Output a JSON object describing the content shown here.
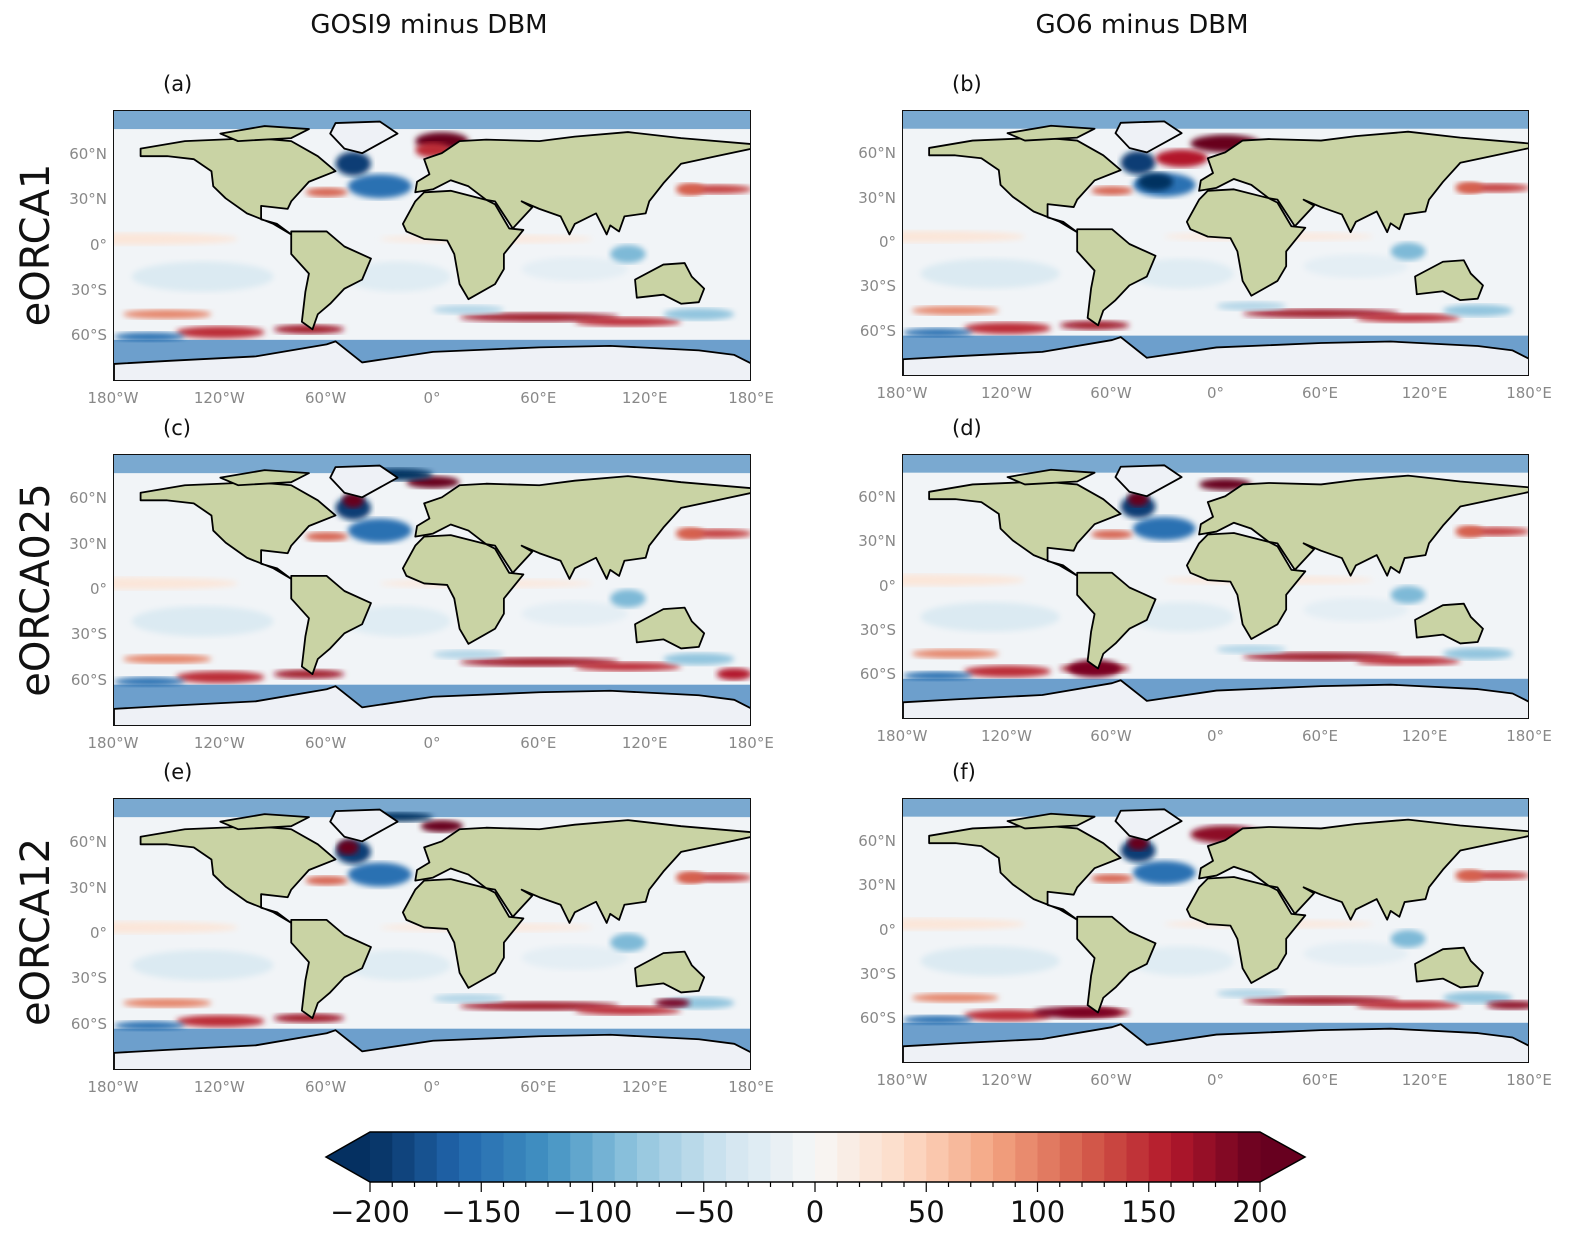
{
  "columns": [
    "GOSI9 minus DBM",
    "GO6 minus DBM"
  ],
  "rows": [
    "eORCA1",
    "eORCA025",
    "eORCA12"
  ],
  "chart_data": {
    "type": "heatmap",
    "projection": "PlateCarree",
    "panels": [
      {
        "label": "(a)",
        "row": "eORCA1",
        "column": "GOSI9 minus DBM"
      },
      {
        "label": "(b)",
        "row": "eORCA1",
        "column": "GO6 minus DBM"
      },
      {
        "label": "(c)",
        "row": "eORCA025",
        "column": "GOSI9 minus DBM"
      },
      {
        "label": "(d)",
        "row": "eORCA025",
        "column": "GO6 minus DBM"
      },
      {
        "label": "(e)",
        "row": "eORCA12",
        "column": "GOSI9 minus DBM"
      },
      {
        "label": "(f)",
        "row": "eORCA12",
        "column": "GO6 minus DBM"
      }
    ],
    "lon_ticks": [
      "180°W",
      "120°W",
      "60°W",
      "0°",
      "60°E",
      "120°E",
      "180°E"
    ],
    "lat_ticks": [
      "60°N",
      "30°N",
      "0°",
      "30°S",
      "60°S"
    ],
    "colorbar": {
      "colormap": "RdBu_r",
      "range": [
        -200,
        200
      ],
      "level_step": 10,
      "extend": "both",
      "ticks": [
        "−200",
        "−150",
        "−100",
        "−50",
        "0",
        "50",
        "100",
        "150",
        "200"
      ],
      "tick_values": [
        -200,
        -150,
        -100,
        -50,
        0,
        50,
        100,
        150,
        200
      ],
      "orientation": "horizontal",
      "placement": "bottom"
    }
  },
  "colors": {
    "land": "#c9d3a4",
    "coast": "#000000",
    "ice": "#eef1f6",
    "text_ticks": "#888888"
  }
}
